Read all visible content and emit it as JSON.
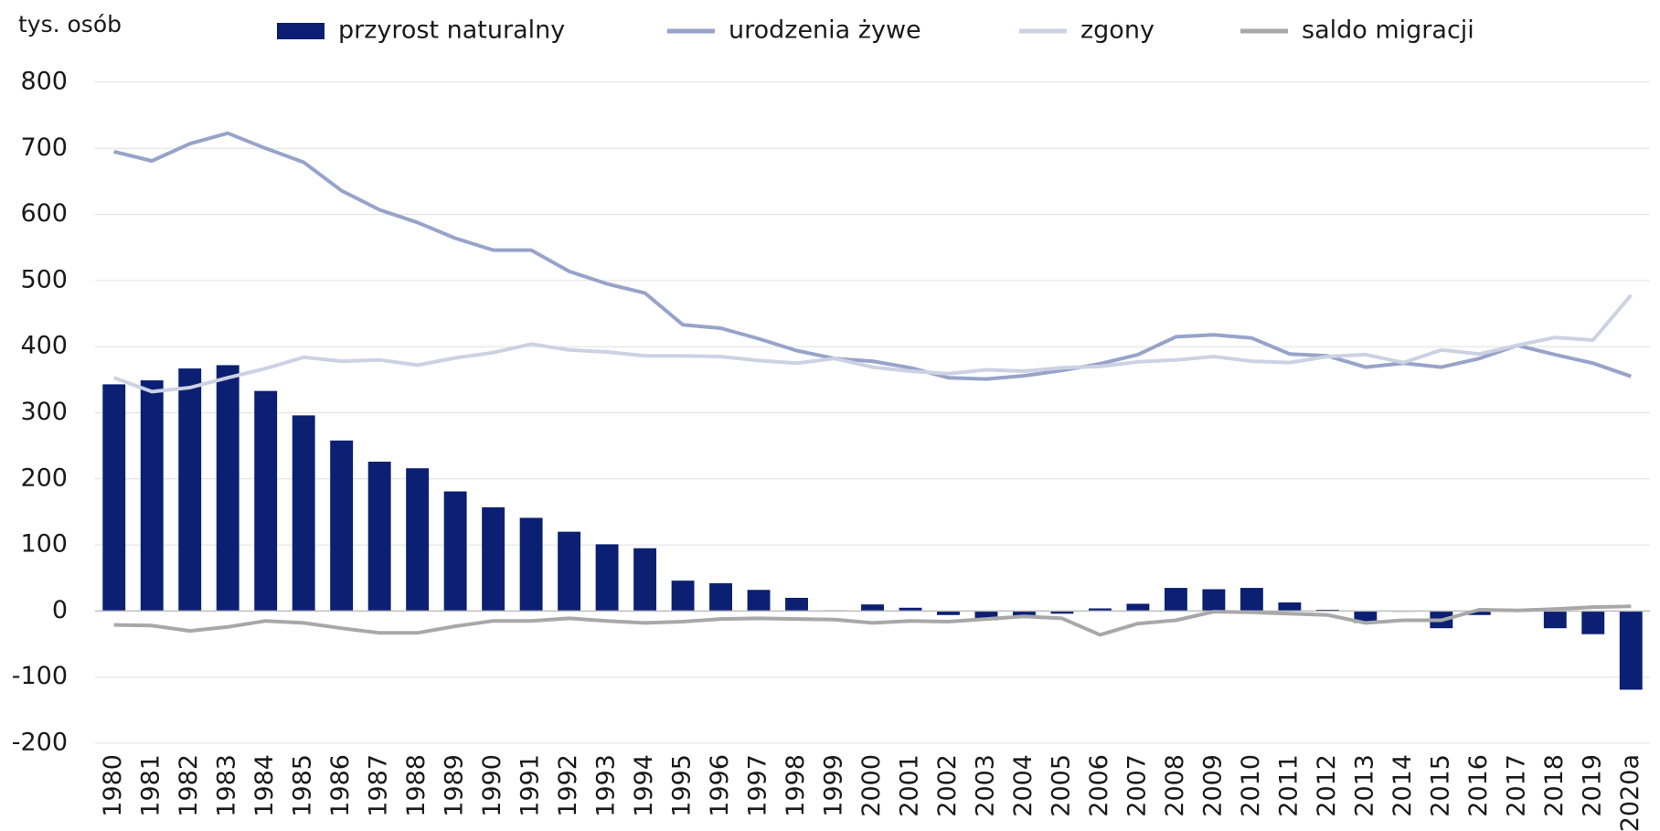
{
  "chart_data": {
    "type": "bar_line",
    "y_unit": "tys. osób",
    "categories": [
      "1980",
      "1981",
      "1982",
      "1983",
      "1984",
      "1985",
      "1986",
      "1987",
      "1988",
      "1989",
      "1990",
      "1991",
      "1992",
      "1993",
      "1994",
      "1995",
      "1996",
      "1997",
      "1998",
      "1999",
      "2000",
      "2001",
      "2002",
      "2003",
      "2004",
      "2005",
      "2006",
      "2007",
      "2008",
      "2009",
      "2010",
      "2011",
      "2012",
      "2013",
      "2014",
      "2015",
      "2016",
      "2017",
      "2018",
      "2019",
      "2020a"
    ],
    "series": [
      {
        "name": "przyrost naturalny",
        "kind": "bar",
        "color": "#0b1f73",
        "values": [
          343,
          349,
          367,
          372,
          333,
          296,
          258,
          226,
          216,
          181,
          157,
          141,
          120,
          101,
          95,
          46,
          42,
          32,
          20,
          1,
          10,
          5,
          -6,
          -14,
          -8,
          -4,
          4,
          11,
          35,
          33,
          35,
          13,
          2,
          -18,
          -1,
          -26,
          -6,
          -1,
          -26,
          -35,
          -119
        ]
      },
      {
        "name": "urodzenia żywe",
        "kind": "line",
        "color": "#97a3c9",
        "values": [
          695,
          681,
          707,
          723,
          700,
          679,
          636,
          607,
          588,
          564,
          546,
          546,
          514,
          495,
          481,
          433,
          428,
          412,
          394,
          382,
          378,
          368,
          353,
          351,
          356,
          364,
          374,
          388,
          415,
          418,
          413,
          389,
          386,
          369,
          375,
          369,
          382,
          402,
          388,
          375,
          355
        ]
      },
      {
        "name": "zgony",
        "kind": "line",
        "color": "#ccd2e3",
        "values": [
          353,
          332,
          338,
          353,
          367,
          384,
          378,
          380,
          372,
          383,
          391,
          404,
          395,
          392,
          386,
          386,
          385,
          379,
          375,
          382,
          369,
          363,
          359,
          365,
          363,
          368,
          370,
          377,
          380,
          385,
          378,
          376,
          385,
          388,
          376,
          395,
          389,
          402,
          414,
          410,
          478
        ]
      },
      {
        "name": "saldo migracji",
        "kind": "line",
        "color": "#a8a8a8",
        "values": [
          -21,
          -22,
          -30,
          -24,
          -15,
          -18,
          -26,
          -33,
          -33,
          -23,
          -15,
          -15,
          -11,
          -15,
          -18,
          -16,
          -12,
          -11,
          -12,
          -13,
          -18,
          -15,
          -16,
          -12,
          -8,
          -11,
          -36,
          -19,
          -14,
          -1,
          -2,
          -4,
          -6,
          -18,
          -14,
          -14,
          2,
          1,
          3,
          6,
          7
        ]
      }
    ],
    "ylim": [
      -200,
      800
    ],
    "yticks": [
      -200,
      -100,
      0,
      100,
      200,
      300,
      400,
      500,
      600,
      700,
      800
    ],
    "grid": true
  }
}
